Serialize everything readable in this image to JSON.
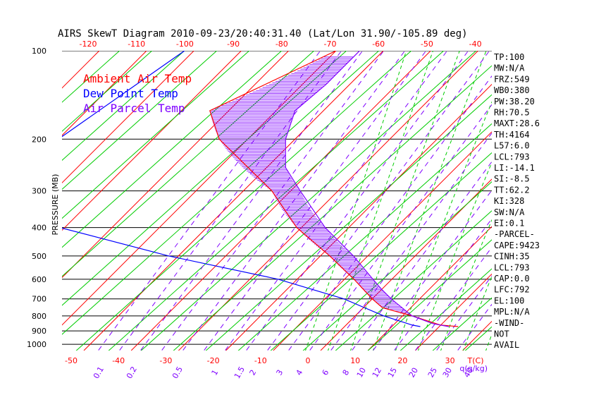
{
  "chart_data": {
    "type": "line",
    "title": "AIRS SkewT Diagram 2010-09-23/20:40:31.40 (Lat/Lon 31.90/-105.89 deg)",
    "ylabel": "PRESSURE (MB)",
    "xlabel_unit": "T(C)",
    "mixing_unit": "q(g/kg)",
    "pressure_ticks": [
      100,
      200,
      300,
      400,
      500,
      600,
      700,
      800,
      900,
      1000
    ],
    "bottom_temp_ticks": [
      -50,
      -40,
      -30,
      -20,
      -10,
      0,
      10,
      20,
      30
    ],
    "top_temp_ticks": [
      -120,
      -110,
      -100,
      -90,
      -80,
      -70,
      -60,
      -50,
      -40
    ],
    "mixing_ratio_ticks": [
      "0.1",
      "0.2",
      "0.5",
      "1",
      "1.5",
      "2",
      "3",
      "4",
      "6",
      "8",
      "10",
      "12",
      "15",
      "20",
      "25",
      "30",
      "40"
    ],
    "legend": [
      {
        "label": "Ambient Air Temp",
        "color": "#ff0000"
      },
      {
        "label": "Dew Point Temp",
        "color": "#0000ff"
      },
      {
        "label": "Air Parcel Temp",
        "color": "#7f00ff"
      }
    ],
    "series": [
      {
        "name": "Ambient Air Temp",
        "color": "#ff0000",
        "points": [
          [
            100,
            -60
          ],
          [
            160,
            -74
          ],
          [
            200,
            -66
          ],
          [
            300,
            -44
          ],
          [
            400,
            -31
          ],
          [
            500,
            -18
          ],
          [
            600,
            -8
          ],
          [
            700,
            0
          ],
          [
            750,
            4
          ],
          [
            800,
            12
          ],
          [
            860,
            20
          ],
          [
            870,
            24
          ]
        ]
      },
      {
        "name": "Dew Point Temp",
        "color": "#0000ff",
        "points": [
          [
            100,
            -92
          ],
          [
            200,
            -100
          ],
          [
            250,
            -99
          ],
          [
            300,
            -97
          ],
          [
            400,
            -81
          ],
          [
            500,
            -52
          ],
          [
            600,
            -24
          ],
          [
            700,
            -6
          ],
          [
            800,
            6
          ],
          [
            860,
            14
          ],
          [
            870,
            16
          ]
        ]
      },
      {
        "name": "Air Parcel Temp",
        "color": "#7f00ff",
        "points": [
          [
            100,
            -55
          ],
          [
            130,
            -55
          ],
          [
            160,
            -56
          ],
          [
            200,
            -52
          ],
          [
            250,
            -46
          ],
          [
            300,
            -38
          ],
          [
            400,
            -25
          ],
          [
            500,
            -13
          ],
          [
            600,
            -4
          ],
          [
            650,
            0
          ],
          [
            700,
            4
          ],
          [
            800,
            12
          ],
          [
            850,
            18
          ],
          [
            870,
            22
          ]
        ]
      }
    ]
  },
  "indices": [
    "TP:100",
    "MW:N/A",
    "FRZ:549",
    "WB0:380",
    "PW:38.20",
    "RH:70.5",
    "MAXT:28.6",
    "TH:4164",
    "L57:6.0",
    "LCL:793",
    "LI:-14.1",
    "SI:-8.5",
    "TT:62.2",
    "KI:328",
    "SW:N/A",
    "EI:0.1",
    "-PARCEL-",
    "CAPE:9423",
    "CINH:35",
    "LCL:793",
    "CAP:0.0",
    "LFC:792",
    "EL:100",
    "MPL:N/A",
    "-WIND-",
    "NOT",
    "AVAIL"
  ],
  "colors": {
    "isotherm": "#ff0000",
    "adiabat": "#00cc00",
    "moist_adiabat": "#00cc00",
    "mixing_ratio": "#7f00ff",
    "isobar": "#000000",
    "hatch": "#7f00ff"
  }
}
